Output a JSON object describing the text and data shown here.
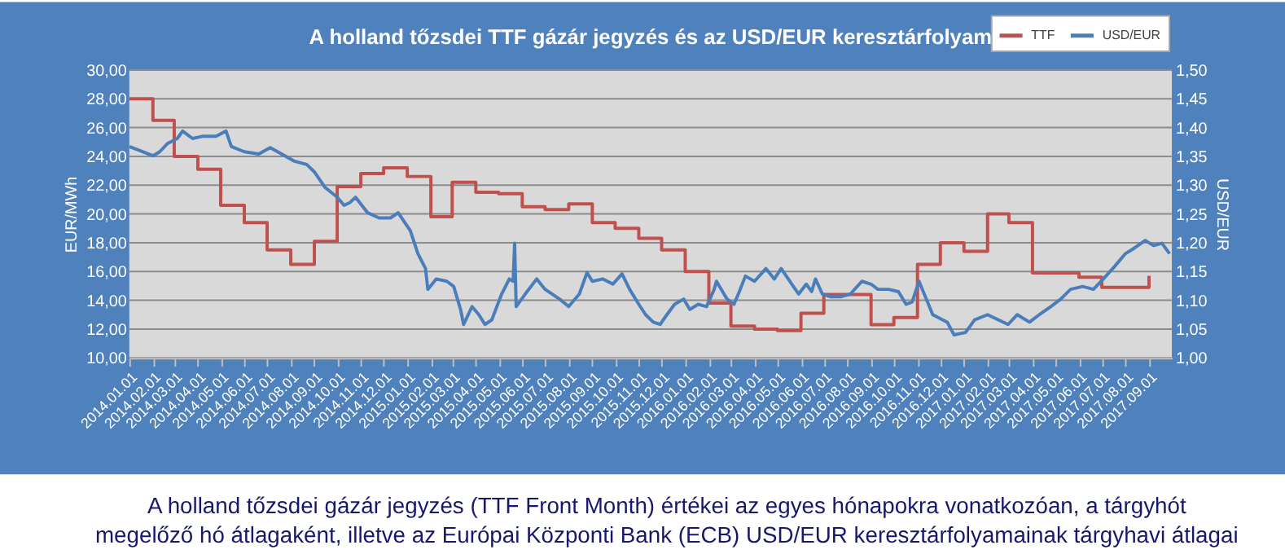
{
  "chart_data": {
    "type": "line",
    "title": "A holland tőzsdei TTF gázár jegyzés és az USD/EUR keresztárfolyam",
    "ylabel": "EUR/MWh",
    "y2label": "USD/EUR",
    "annotations": [
      "A holland tőzsdei gázár jegyzés (TTF Front Month) értékei az egyes hónapokra vonatkozóan, a tárgyhót",
      "megelőző hó átlagaként, illetve az Európai Központi Bank (ECB) USD/EUR keresztárfolyamainak tárgyhavi átlagai"
    ],
    "xlim": [
      "2014-01-01",
      "2017-10-01"
    ],
    "xticks": [
      {
        "value": "2014-01-01",
        "label": "2014.01.01"
      },
      {
        "value": "2014-02-01",
        "label": "2014.02.01"
      },
      {
        "value": "2014-03-01",
        "label": "2014.03.01"
      },
      {
        "value": "2014-04-01",
        "label": "2014.04.01"
      },
      {
        "value": "2014-05-01",
        "label": "2014.05.01"
      },
      {
        "value": "2014-06-01",
        "label": "2014.06.01"
      },
      {
        "value": "2014-07-01",
        "label": "2014.07.01"
      },
      {
        "value": "2014-08-01",
        "label": "2014.08.01"
      },
      {
        "value": "2014-09-01",
        "label": "2014.09.01"
      },
      {
        "value": "2014-10-01",
        "label": "2014.10.01"
      },
      {
        "value": "2014-11-01",
        "label": "2014.11.01"
      },
      {
        "value": "2014-12-01",
        "label": "2014.12.01"
      },
      {
        "value": "2015-01-01",
        "label": "2015.01.01"
      },
      {
        "value": "2015-02-01",
        "label": "2015.02.01"
      },
      {
        "value": "2015-03-01",
        "label": "2015.03.01"
      },
      {
        "value": "2015-04-01",
        "label": "2015.04.01"
      },
      {
        "value": "2015-05-01",
        "label": "2015.05.01"
      },
      {
        "value": "2015-06-01",
        "label": "2015.06.01"
      },
      {
        "value": "2015-07-01",
        "label": "2015.07.01"
      },
      {
        "value": "2015-08-01",
        "label": "2015.08.01"
      },
      {
        "value": "2015-09-01",
        "label": "2015.09.01"
      },
      {
        "value": "2015-10-01",
        "label": "2015.10.01"
      },
      {
        "value": "2015-11-01",
        "label": "2015.11.01"
      },
      {
        "value": "2015-12-01",
        "label": "2015.12.01"
      },
      {
        "value": "2016-01-01",
        "label": "2016.01.01"
      },
      {
        "value": "2016-02-01",
        "label": "2016.02.01"
      },
      {
        "value": "2016-03-01",
        "label": "2016.03.01"
      },
      {
        "value": "2016-04-01",
        "label": "2016.04.01"
      },
      {
        "value": "2016-05-01",
        "label": "2016.05.01"
      },
      {
        "value": "2016-06-01",
        "label": "2016.06.01"
      },
      {
        "value": "2016-07-01",
        "label": "2016.07.01"
      },
      {
        "value": "2016-08-01",
        "label": "2016.08.01"
      },
      {
        "value": "2016-09-01",
        "label": "2016.09.01"
      },
      {
        "value": "2016-10-01",
        "label": "2016.10.01"
      },
      {
        "value": "2016-11-01",
        "label": "2016.11.01"
      },
      {
        "value": "2016-12-01",
        "label": "2016.12.01"
      },
      {
        "value": "2017-01-01",
        "label": "2017.01.01"
      },
      {
        "value": "2017-02-01",
        "label": "2017.02.01"
      },
      {
        "value": "2017-03-01",
        "label": "2017.03.01"
      },
      {
        "value": "2017-04-01",
        "label": "2017.04.01"
      },
      {
        "value": "2017-05-01",
        "label": "2017.05.01"
      },
      {
        "value": "2017-06-01",
        "label": "2017.06.01"
      },
      {
        "value": "2017-07-01",
        "label": "2017.07.01"
      },
      {
        "value": "2017-08-01",
        "label": "2017.08.01"
      },
      {
        "value": "2017-09-01",
        "label": "2017.09.01"
      }
    ],
    "ylim": [
      10,
      30
    ],
    "yticks": [
      {
        "value": 10,
        "label": "10,00"
      },
      {
        "value": 12,
        "label": "12,00"
      },
      {
        "value": 14,
        "label": "14,00"
      },
      {
        "value": 16,
        "label": "16,00"
      },
      {
        "value": 18,
        "label": "18,00"
      },
      {
        "value": 20,
        "label": "20,00"
      },
      {
        "value": 22,
        "label": "22,00"
      },
      {
        "value": 24,
        "label": "24,00"
      },
      {
        "value": 26,
        "label": "26,00"
      },
      {
        "value": 28,
        "label": "28,00"
      },
      {
        "value": 30,
        "label": "30,00"
      }
    ],
    "y2lim": [
      1.0,
      1.5
    ],
    "y2ticks": [
      {
        "value": 1.0,
        "label": "1,00"
      },
      {
        "value": 1.05,
        "label": "1,05"
      },
      {
        "value": 1.1,
        "label": "1,10"
      },
      {
        "value": 1.15,
        "label": "1,15"
      },
      {
        "value": 1.2,
        "label": "1,20"
      },
      {
        "value": 1.25,
        "label": "1,25"
      },
      {
        "value": 1.3,
        "label": "1,30"
      },
      {
        "value": 1.35,
        "label": "1,35"
      },
      {
        "value": 1.4,
        "label": "1,40"
      },
      {
        "value": 1.45,
        "label": "1,45"
      },
      {
        "value": 1.5,
        "label": "1,50"
      }
    ],
    "grid": "y",
    "legend": "top right",
    "marker": "none",
    "line_style": "solid",
    "series": [
      {
        "name": "TTF",
        "type": "step",
        "color": "#c0504d",
        "x": [
          "2014-01-01",
          "2014-02-01",
          "2014-03-01",
          "2014-04-01",
          "2014-05-01",
          "2014-06-01",
          "2014-07-01",
          "2014-08-01",
          "2014-09-01",
          "2014-10-01",
          "2014-11-01",
          "2014-12-01",
          "2015-01-01",
          "2015-02-01",
          "2015-03-01",
          "2015-04-01",
          "2015-05-01",
          "2015-06-01",
          "2015-07-01",
          "2015-08-01",
          "2015-09-01",
          "2015-10-01",
          "2015-11-01",
          "2015-12-01",
          "2016-01-01",
          "2016-02-01",
          "2016-03-01",
          "2016-04-01",
          "2016-05-01",
          "2016-06-01",
          "2016-07-01",
          "2016-08-01",
          "2016-09-01",
          "2016-10-01",
          "2016-11-01",
          "2016-12-01",
          "2017-01-01",
          "2017-02-01",
          "2017-03-01",
          "2017-04-01",
          "2017-05-01",
          "2017-06-01",
          "2017-07-01",
          "2017-08-01",
          "2017-09-01"
        ],
        "values": [
          28.0,
          26.5,
          24.0,
          23.1,
          20.6,
          19.4,
          17.5,
          16.5,
          18.1,
          21.9,
          22.8,
          23.2,
          22.6,
          19.8,
          22.2,
          21.5,
          21.4,
          20.5,
          20.3,
          20.7,
          19.4,
          19.0,
          18.3,
          17.5,
          16.0,
          13.8,
          12.2,
          12.0,
          11.9,
          13.1,
          14.4,
          14.4,
          12.3,
          12.8,
          16.5,
          18.0,
          17.4,
          20.0,
          19.4,
          15.9,
          15.9,
          15.6,
          14.9,
          14.9,
          15.7
        ]
      },
      {
        "name": "USD/EUR",
        "type": "line",
        "axis": "y2",
        "color": "#4a7ebb",
        "x": [
          "2014-01-01",
          "2014-01-15",
          "2014-02-01",
          "2014-02-10",
          "2014-02-20",
          "2014-03-05",
          "2014-03-12",
          "2014-03-25",
          "2014-04-08",
          "2014-04-25",
          "2014-05-08",
          "2014-05-15",
          "2014-06-01",
          "2014-06-20",
          "2014-07-05",
          "2014-07-20",
          "2014-08-05",
          "2014-08-22",
          "2014-09-01",
          "2014-09-15",
          "2014-10-01",
          "2014-10-10",
          "2014-10-18",
          "2014-10-25",
          "2014-11-10",
          "2014-11-25",
          "2014-12-10",
          "2014-12-20",
          "2015-01-05",
          "2015-01-15",
          "2015-01-25",
          "2015-01-28",
          "2015-02-08",
          "2015-02-22",
          "2015-03-03",
          "2015-03-12",
          "2015-03-16",
          "2015-03-27",
          "2015-04-05",
          "2015-04-13",
          "2015-04-22",
          "2015-05-05",
          "2015-05-15",
          "2015-05-20",
          "2015-05-22",
          "2015-05-24",
          "2015-06-05",
          "2015-06-20",
          "2015-07-01",
          "2015-07-20",
          "2015-08-01",
          "2015-08-15",
          "2015-08-25",
          "2015-09-01",
          "2015-09-15",
          "2015-09-28",
          "2015-10-10",
          "2015-10-20",
          "2015-11-01",
          "2015-11-10",
          "2015-11-20",
          "2015-11-29",
          "2015-12-08",
          "2015-12-18",
          "2015-12-30",
          "2016-01-07",
          "2016-01-18",
          "2016-01-29",
          "2016-02-08",
          "2016-02-11",
          "2016-02-25",
          "2016-03-05",
          "2016-03-12",
          "2016-03-20",
          "2016-04-01",
          "2016-04-16",
          "2016-04-27",
          "2016-05-06",
          "2016-05-22",
          "2016-05-29",
          "2016-06-08",
          "2016-06-15",
          "2016-06-20",
          "2016-06-29",
          "2016-07-10",
          "2016-07-23",
          "2016-08-05",
          "2016-08-20",
          "2016-09-01",
          "2016-09-10",
          "2016-09-24",
          "2016-10-07",
          "2016-10-17",
          "2016-10-25",
          "2016-11-03",
          "2016-11-21",
          "2016-12-10",
          "2016-12-19",
          "2017-01-03",
          "2017-01-15",
          "2017-02-01",
          "2017-02-15",
          "2017-02-28",
          "2017-03-12",
          "2017-03-28",
          "2017-04-10",
          "2017-04-25",
          "2017-05-08",
          "2017-05-21",
          "2017-06-06",
          "2017-06-20",
          "2017-07-03",
          "2017-07-18",
          "2017-08-01",
          "2017-08-12",
          "2017-08-27",
          "2017-09-07",
          "2017-09-18",
          "2017-09-28"
        ],
        "values": [
          1.367,
          1.36,
          1.351,
          1.358,
          1.372,
          1.381,
          1.394,
          1.381,
          1.385,
          1.385,
          1.394,
          1.367,
          1.358,
          1.354,
          1.365,
          1.354,
          1.342,
          1.336,
          1.323,
          1.296,
          1.279,
          1.265,
          1.27,
          1.279,
          1.252,
          1.243,
          1.243,
          1.252,
          1.221,
          1.181,
          1.155,
          1.119,
          1.137,
          1.133,
          1.124,
          1.084,
          1.058,
          1.089,
          1.075,
          1.058,
          1.066,
          1.111,
          1.137,
          1.133,
          1.199,
          1.089,
          1.111,
          1.137,
          1.119,
          1.102,
          1.089,
          1.111,
          1.148,
          1.133,
          1.137,
          1.128,
          1.146,
          1.119,
          1.093,
          1.075,
          1.062,
          1.058,
          1.075,
          1.093,
          1.102,
          1.084,
          1.093,
          1.089,
          1.119,
          1.133,
          1.102,
          1.093,
          1.115,
          1.142,
          1.133,
          1.155,
          1.137,
          1.155,
          1.124,
          1.111,
          1.128,
          1.115,
          1.137,
          1.111,
          1.106,
          1.106,
          1.111,
          1.133,
          1.128,
          1.119,
          1.119,
          1.115,
          1.093,
          1.097,
          1.133,
          1.075,
          1.062,
          1.04,
          1.044,
          1.066,
          1.075,
          1.066,
          1.058,
          1.075,
          1.062,
          1.075,
          1.089,
          1.102,
          1.119,
          1.124,
          1.119,
          1.137,
          1.159,
          1.181,
          1.19,
          1.204,
          1.195,
          1.199,
          1.181
        ]
      }
    ]
  }
}
